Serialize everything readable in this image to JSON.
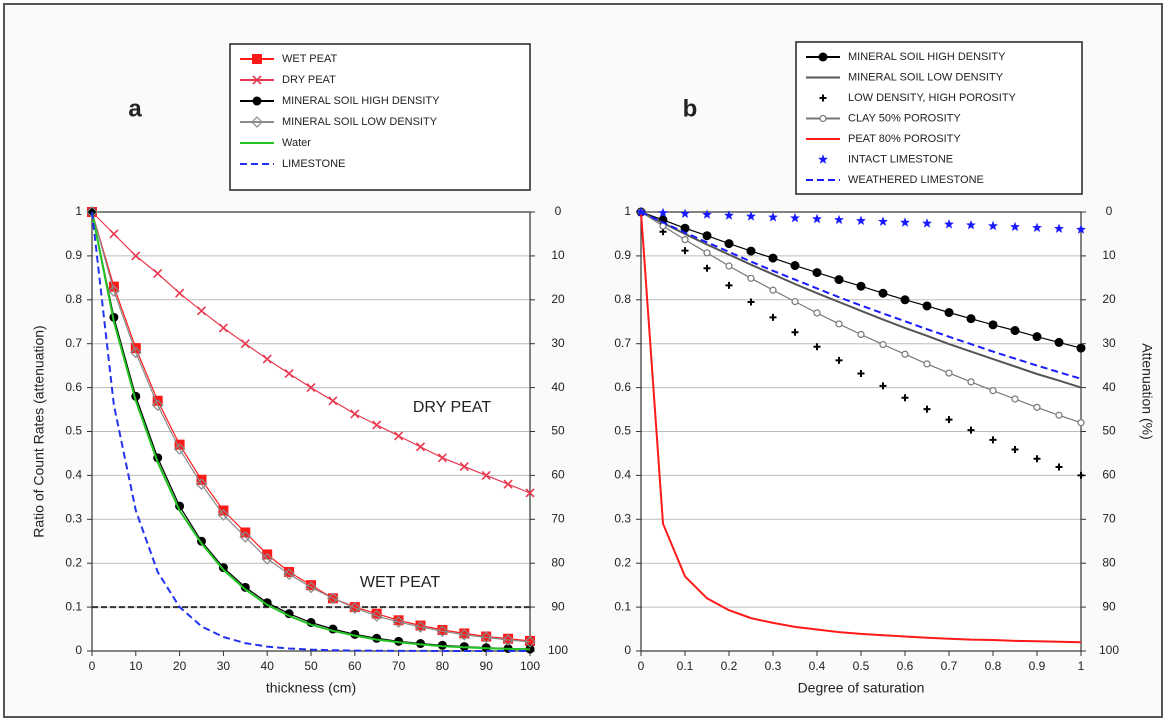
{
  "chart_data": [
    {
      "type": "line",
      "panel_label": "a",
      "xlabel": "thickness (cm)",
      "ylabel": "Ratio of Count Rates (attenuation)",
      "x": [
        0,
        5,
        10,
        15,
        20,
        25,
        30,
        35,
        40,
        45,
        50,
        55,
        60,
        65,
        70,
        75,
        80,
        85,
        90,
        95,
        100
      ],
      "xlim": [
        0,
        100
      ],
      "xticks": [
        0,
        10,
        20,
        30,
        40,
        50,
        60,
        70,
        80,
        90,
        100
      ],
      "ylim": [
        0,
        1
      ],
      "yticks": [
        0,
        0.1,
        0.2,
        0.3,
        0.4,
        0.5,
        0.6,
        0.7,
        0.8,
        0.9,
        1
      ],
      "y2lim": [
        100,
        0
      ],
      "y2ticks": [
        0,
        10,
        20,
        30,
        40,
        50,
        60,
        70,
        80,
        90,
        100
      ],
      "grid": true,
      "reference_line": 0.1,
      "annotations": [
        "DRY PEAT",
        "WET PEAT"
      ],
      "series": [
        {
          "name": "WET PEAT",
          "color": "#ff1a1a",
          "marker": "square",
          "line": "solid",
          "values": [
            1,
            0.83,
            0.69,
            0.57,
            0.47,
            0.39,
            0.32,
            0.27,
            0.22,
            0.18,
            0.15,
            0.12,
            0.1,
            0.085,
            0.07,
            0.058,
            0.048,
            0.04,
            0.033,
            0.028,
            0.023
          ]
        },
        {
          "name": "DRY PEAT",
          "color": "#e8384f",
          "marker": "x",
          "line": "solid",
          "values": [
            1,
            0.95,
            0.9,
            0.86,
            0.815,
            0.775,
            0.736,
            0.7,
            0.665,
            0.632,
            0.6,
            0.57,
            0.54,
            0.515,
            0.49,
            0.465,
            0.44,
            0.42,
            0.4,
            0.38,
            0.36
          ]
        },
        {
          "name": "MINERAL SOIL HIGH DENSITY",
          "color": "#000000",
          "marker": "circle",
          "line": "solid",
          "values": [
            1,
            0.76,
            0.58,
            0.44,
            0.33,
            0.25,
            0.19,
            0.145,
            0.11,
            0.085,
            0.065,
            0.05,
            0.038,
            0.029,
            0.022,
            0.017,
            0.013,
            0.01,
            0.0075,
            0.0057,
            0.0044
          ]
        },
        {
          "name": "MINERAL SOIL LOW DENSITY",
          "color": "#8a8a8a",
          "marker": "diamond",
          "line": "solid",
          "values": [
            1,
            0.82,
            0.68,
            0.56,
            0.46,
            0.38,
            0.31,
            0.26,
            0.21,
            0.175,
            0.145,
            0.12,
            0.098,
            0.08,
            0.066,
            0.055,
            0.045,
            0.037,
            0.031,
            0.025,
            0.021
          ]
        },
        {
          "name": "Water",
          "color": "#22c422",
          "marker": "none",
          "line": "solid",
          "values": [
            1,
            0.75,
            0.57,
            0.43,
            0.32,
            0.245,
            0.185,
            0.14,
            0.105,
            0.08,
            0.06,
            0.046,
            0.035,
            0.026,
            0.02,
            0.015,
            0.011,
            0.0085,
            0.0064,
            0.0048,
            0.0036
          ]
        },
        {
          "name": "LIMESTONE",
          "color": "#2233ee",
          "marker": "none",
          "line": "dashed",
          "values": [
            1,
            0.56,
            0.32,
            0.18,
            0.1,
            0.056,
            0.032,
            0.018,
            0.01,
            0.0056,
            0.0032,
            0.0018,
            0.001,
            0.0006,
            0.0003,
            0.0002,
            0.0001,
            0,
            0,
            0,
            0
          ]
        }
      ]
    },
    {
      "type": "line",
      "panel_label": "b",
      "xlabel": "Degree of saturation",
      "y2label": "Attenuation (%)",
      "x": [
        0,
        0.05,
        0.1,
        0.15,
        0.2,
        0.25,
        0.3,
        0.35,
        0.4,
        0.45,
        0.5,
        0.55,
        0.6,
        0.65,
        0.7,
        0.75,
        0.8,
        0.85,
        0.9,
        0.95,
        1
      ],
      "xlim": [
        0,
        1
      ],
      "xticks": [
        0,
        0.1,
        0.2,
        0.3,
        0.4,
        0.5,
        0.6,
        0.7,
        0.8,
        0.9,
        1
      ],
      "ylim": [
        0,
        1
      ],
      "yticks": [
        0,
        0.1,
        0.2,
        0.3,
        0.4,
        0.5,
        0.6,
        0.7,
        0.8,
        0.9,
        1
      ],
      "y2lim": [
        100,
        0
      ],
      "y2ticks": [
        0,
        10,
        20,
        30,
        40,
        50,
        60,
        70,
        80,
        90,
        100
      ],
      "grid": true,
      "series": [
        {
          "name": "MINERAL SOIL HIGH DENSITY",
          "color": "#000000",
          "marker": "circle",
          "line": "solid",
          "values": [
            1,
            0.982,
            0.963,
            0.946,
            0.928,
            0.911,
            0.895,
            0.878,
            0.862,
            0.846,
            0.831,
            0.815,
            0.8,
            0.786,
            0.771,
            0.757,
            0.743,
            0.73,
            0.716,
            0.703,
            0.69
          ]
        },
        {
          "name": "MINERAL SOIL LOW DENSITY",
          "color": "#555555",
          "marker": "none",
          "line": "solid",
          "values": [
            1,
            0.975,
            0.95,
            0.926,
            0.903,
            0.88,
            0.858,
            0.836,
            0.815,
            0.795,
            0.775,
            0.755,
            0.736,
            0.718,
            0.699,
            0.682,
            0.665,
            0.648,
            0.631,
            0.616,
            0.6
          ]
        },
        {
          "name": "LOW DENSITY, HIGH POROSITY",
          "color": "#000000",
          "marker": "plus",
          "line": "none",
          "values": [
            1,
            0.955,
            0.912,
            0.872,
            0.833,
            0.795,
            0.76,
            0.726,
            0.693,
            0.662,
            0.632,
            0.604,
            0.577,
            0.551,
            0.527,
            0.503,
            0.481,
            0.459,
            0.438,
            0.419,
            0.4
          ]
        },
        {
          "name": "CLAY 50% POROSITY",
          "color": "#777777",
          "marker": "open-circle",
          "line": "solid",
          "values": [
            1,
            0.968,
            0.937,
            0.907,
            0.877,
            0.849,
            0.822,
            0.796,
            0.77,
            0.745,
            0.721,
            0.698,
            0.676,
            0.654,
            0.633,
            0.613,
            0.593,
            0.574,
            0.555,
            0.537,
            0.52
          ]
        },
        {
          "name": "PEAT 80% POROSITY",
          "color": "#ff1a1a",
          "marker": "none",
          "line": "solid",
          "values": [
            1,
            0.29,
            0.17,
            0.12,
            0.093,
            0.075,
            0.064,
            0.055,
            0.049,
            0.043,
            0.039,
            0.036,
            0.033,
            0.03,
            0.028,
            0.026,
            0.025,
            0.023,
            0.022,
            0.021,
            0.02
          ]
        },
        {
          "name": "INTACT LIMESTONE",
          "color": "#1a1aff",
          "marker": "star",
          "line": "none",
          "values": [
            1,
            0.998,
            0.996,
            0.994,
            0.992,
            0.99,
            0.988,
            0.986,
            0.984,
            0.982,
            0.98,
            0.978,
            0.976,
            0.974,
            0.972,
            0.97,
            0.968,
            0.966,
            0.964,
            0.962,
            0.96
          ]
        },
        {
          "name": "WEATHERED LIMESTONE",
          "color": "#1a1aff",
          "marker": "none",
          "line": "dashed",
          "values": [
            1,
            0.976,
            0.953,
            0.931,
            0.909,
            0.887,
            0.866,
            0.846,
            0.826,
            0.806,
            0.787,
            0.769,
            0.751,
            0.733,
            0.716,
            0.699,
            0.682,
            0.666,
            0.65,
            0.635,
            0.62
          ]
        }
      ]
    }
  ]
}
